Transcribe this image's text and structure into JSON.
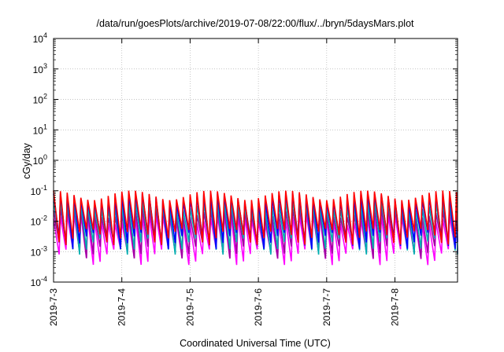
{
  "chart_data": {
    "type": "line",
    "title": "/data/run/goesPlots/archive/2019-07-08/22:00/flux/../bryn/5daysMars.plot",
    "xlabel": "Coordinated Universal Time (UTC)",
    "ylabel": "cGy/day",
    "yscale": "log",
    "ylim": [
      0.0001,
      10000
    ],
    "y_ticks": [
      {
        "base": "10",
        "exp": "-4"
      },
      {
        "base": "10",
        "exp": "-3"
      },
      {
        "base": "10",
        "exp": "-2"
      },
      {
        "base": "10",
        "exp": "-1"
      },
      {
        "base": "10",
        "exp": "0"
      },
      {
        "base": "10",
        "exp": "1"
      },
      {
        "base": "10",
        "exp": "2"
      },
      {
        "base": "10",
        "exp": "3"
      },
      {
        "base": "10",
        "exp": "4"
      }
    ],
    "x_ticks": [
      "2019-7-3",
      "2019-7-4",
      "2019-7-5",
      "2019-7-6",
      "2019-7-7",
      "2019-7-8"
    ],
    "xlim": [
      "2019-07-03T00:00",
      "2019-07-08T22:00"
    ],
    "grid": true,
    "series_colors": [
      "#ff0000",
      "#0000ff",
      "#00b0b0",
      "#a000a0",
      "#ff00ff"
    ],
    "sawtooth_period_hours": 2.4,
    "series": [
      {
        "color": "#ff0000",
        "peak": 0.075,
        "trough": 0.004
      },
      {
        "color": "#0000ff",
        "peak": 0.06,
        "trough": 0.003
      },
      {
        "color": "#00b0b0",
        "peak": 0.035,
        "trough": 0.002
      },
      {
        "color": "#a000a0",
        "peak": 0.02,
        "trough": 0.0015
      },
      {
        "color": "#ff00ff",
        "peak": 0.012,
        "trough": 0.0009
      }
    ]
  }
}
